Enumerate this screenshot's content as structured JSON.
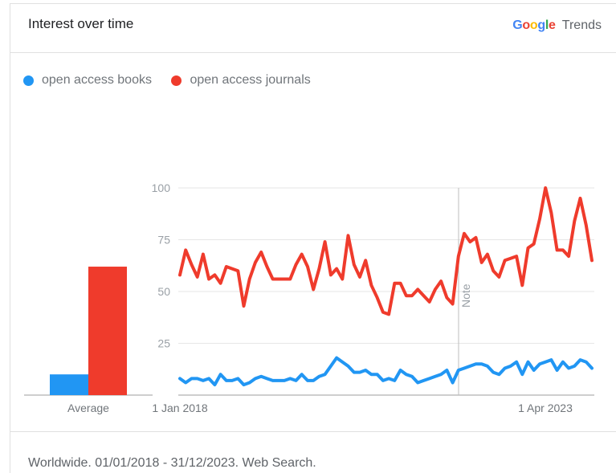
{
  "header": {
    "title": "Interest over time",
    "brand_google": "Google",
    "brand_trends": "Trends"
  },
  "colors": {
    "books": "#2196f3",
    "journals": "#ef3b2c",
    "grid": "#e6e6e6",
    "axis": "#9e9e9e"
  },
  "footer": {
    "text": "Worldwide. 01/01/2018 - 31/12/2023. Web Search."
  },
  "chart_data": {
    "type": "line",
    "x_start_label": "1 Jan 2018",
    "x_end_label": "1 Apr 2023",
    "note_label": "Note",
    "yticks": [
      25,
      50,
      75,
      100
    ],
    "ylim": [
      0,
      100
    ],
    "legend_placement": "top-left",
    "average": {
      "label": "Average",
      "books": 10,
      "journals": 62
    },
    "series": [
      {
        "name": "open access books",
        "color": "#2196f3",
        "values": [
          8,
          6,
          8,
          8,
          7,
          8,
          5,
          10,
          7,
          7,
          8,
          5,
          6,
          8,
          9,
          8,
          7,
          7,
          7,
          8,
          7,
          10,
          7,
          7,
          9,
          10,
          14,
          18,
          16,
          14,
          11,
          11,
          12,
          10,
          10,
          7,
          8,
          7,
          12,
          10,
          9,
          6,
          7,
          8,
          9,
          10,
          12,
          6,
          12,
          13,
          14,
          15,
          15,
          14,
          11,
          10,
          13,
          14,
          16,
          10,
          16,
          12,
          15,
          16,
          17,
          12,
          16,
          13,
          14,
          17,
          16,
          13
        ],
        "values_note": ""
      },
      {
        "name": "open access journals",
        "color": "#ef3b2c",
        "values": [
          58,
          70,
          63,
          57,
          68,
          56,
          58,
          54,
          62,
          61,
          60,
          43,
          56,
          64,
          69,
          62,
          56,
          56,
          56,
          56,
          63,
          68,
          62,
          51,
          61,
          74,
          58,
          61,
          56,
          77,
          63,
          57,
          65,
          53,
          47,
          40,
          39,
          54,
          54,
          48,
          48,
          51,
          48,
          45,
          51,
          55,
          47,
          44,
          67,
          78,
          74,
          76,
          64,
          68,
          60,
          57,
          65,
          66,
          67,
          53,
          71,
          73,
          85,
          100,
          88,
          70,
          70,
          67,
          84,
          95,
          82,
          65
        ]
      }
    ]
  }
}
